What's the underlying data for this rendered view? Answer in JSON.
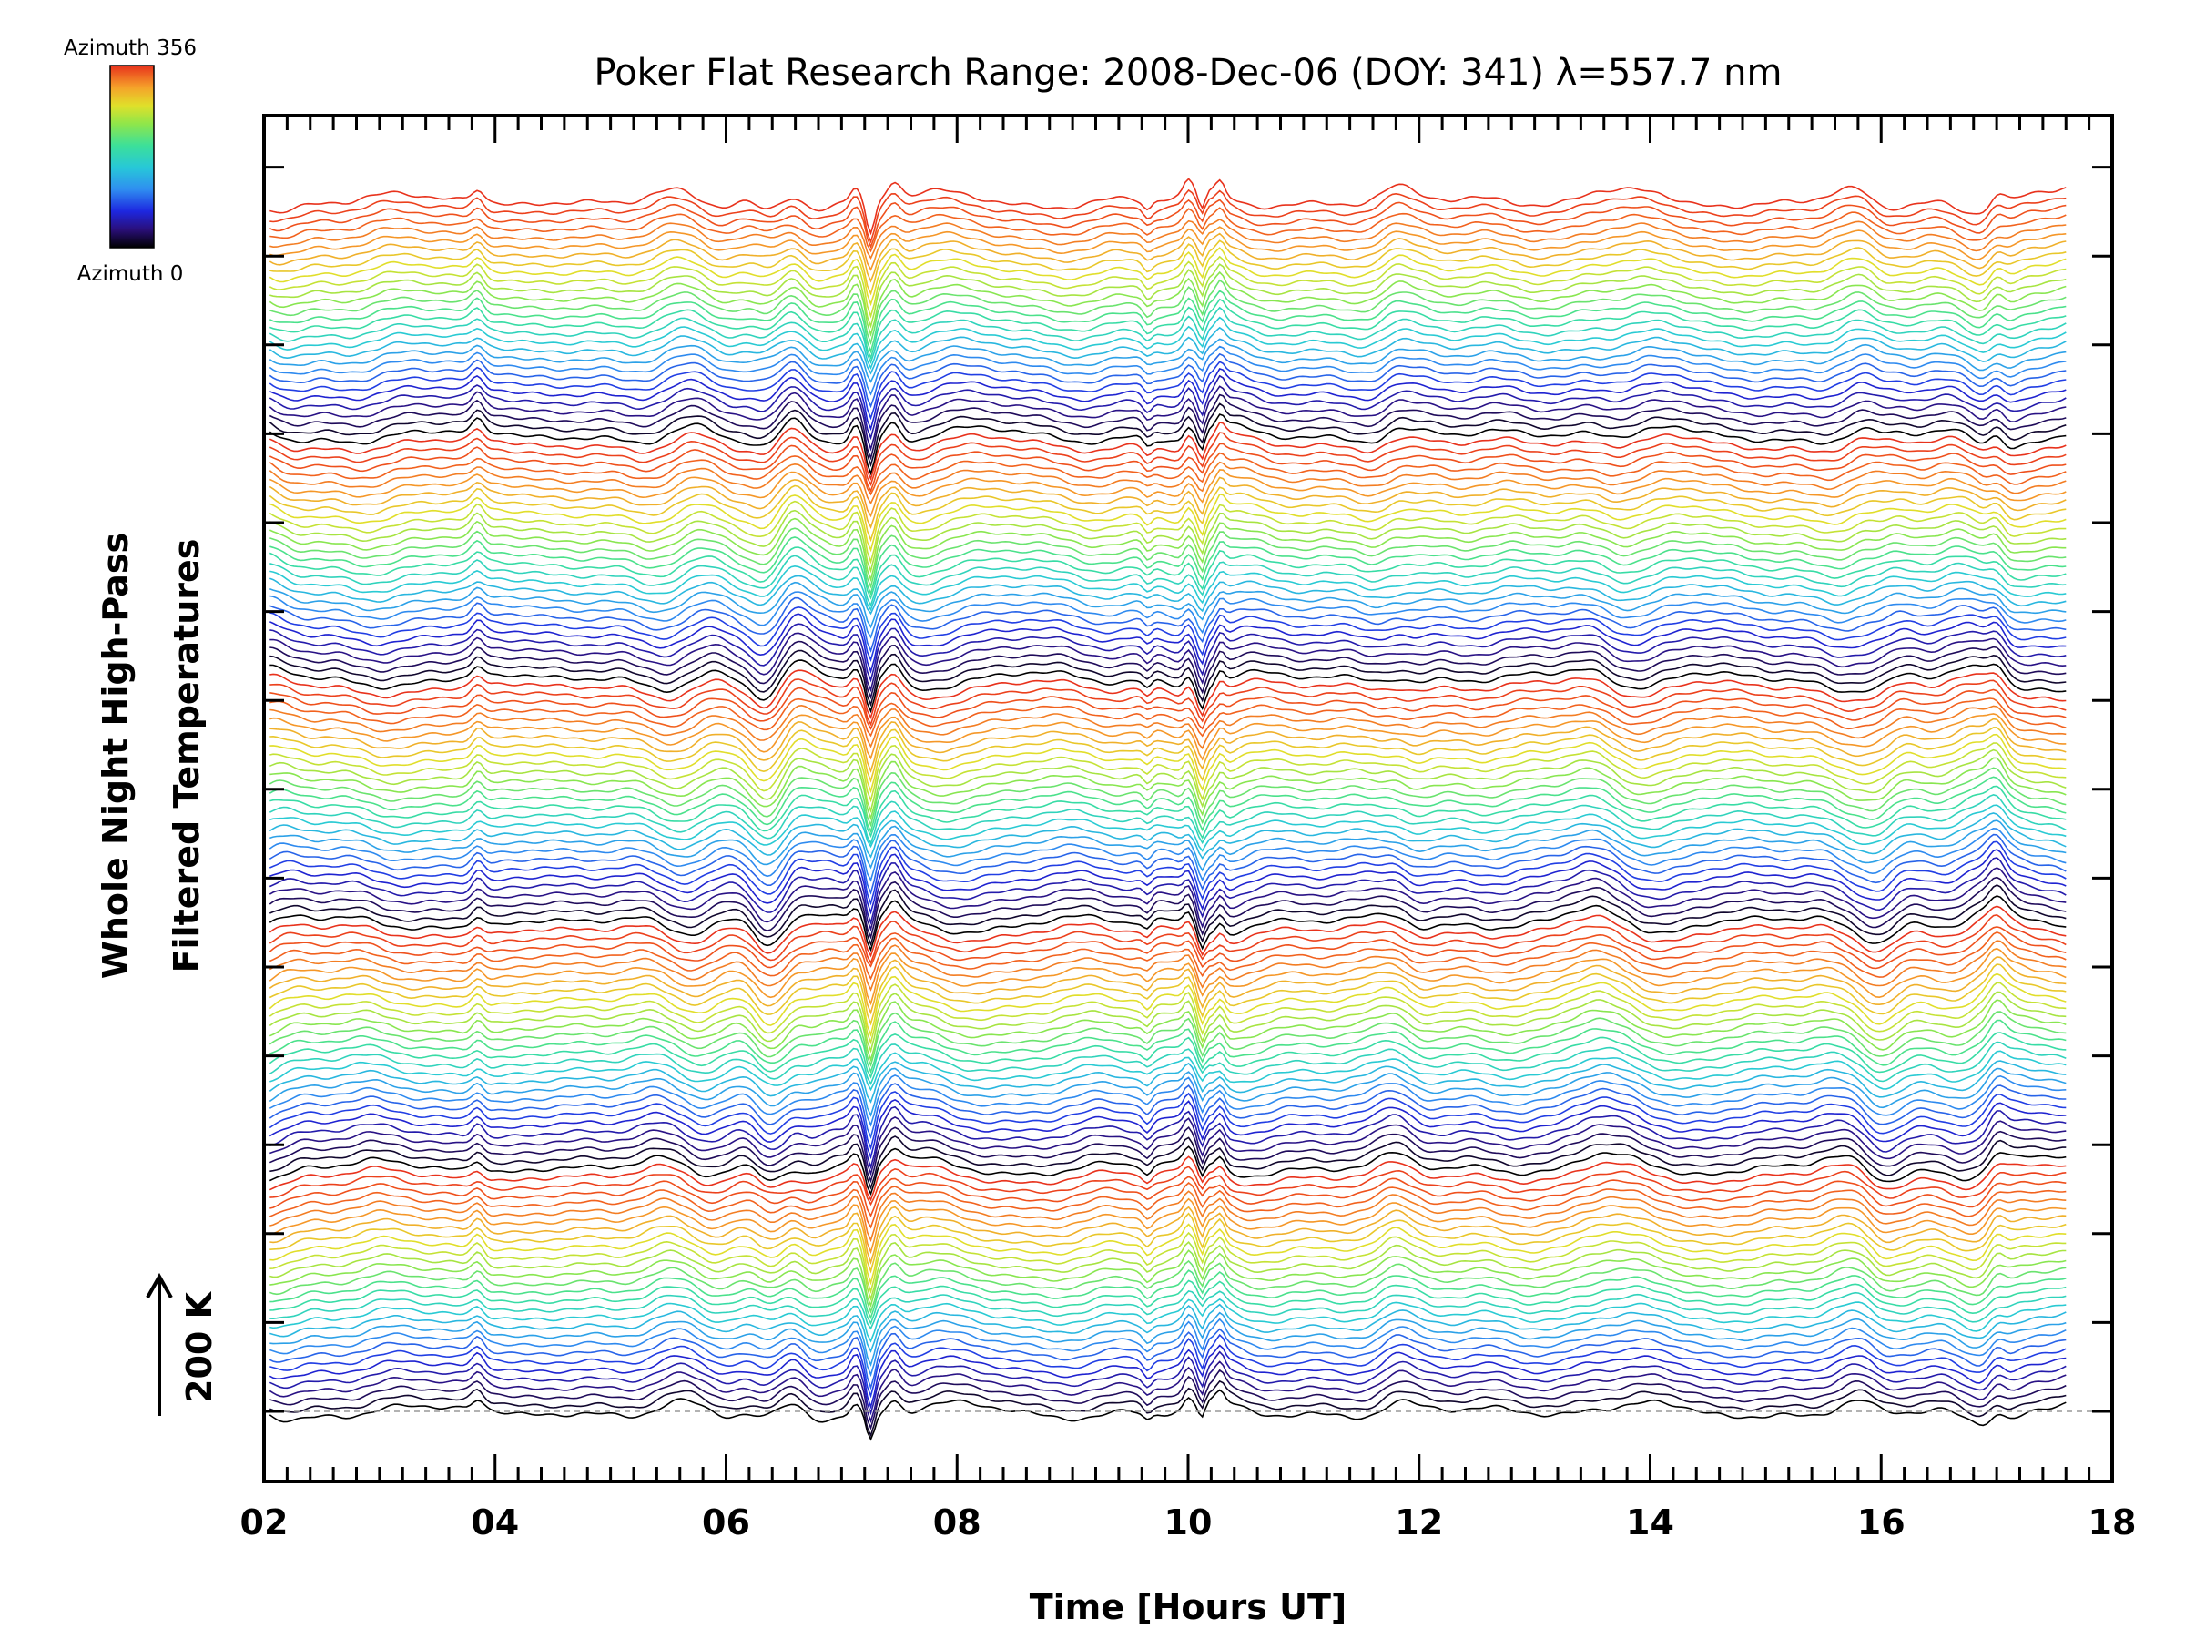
{
  "chart_data": {
    "type": "line",
    "title": "Poker Flat Research Range: 2008-Dec-06 (DOY: 341) λ=557.7 nm",
    "xlabel": "Time [Hours UT]",
    "ylabel_line1": "Whole Night High-Pass",
    "ylabel_line2": "Filtered Temperatures",
    "xlim": [
      2,
      18
    ],
    "xticks": [
      "02",
      "04",
      "06",
      "08",
      "10",
      "12",
      "14",
      "16",
      "18"
    ],
    "x_start": 2.05,
    "x_end": 17.6,
    "scale_bar_label": "200 K",
    "colorbar": {
      "top_label": "Azimuth 356",
      "bottom_label": "Azimuth 0",
      "colors": [
        "#000000",
        "#2a0f7a",
        "#1d27e0",
        "#2f8ef0",
        "#27c8d8",
        "#3ce09a",
        "#8fe64a",
        "#e0e02a",
        "#f5a22a",
        "#f25a1c",
        "#e8321c"
      ]
    },
    "series_count": 140,
    "series_azimuth_cycle": 28,
    "series_note": "Stacked high-pass filtered temperature traces colored by azimuth (0 to 356)",
    "features": [
      {
        "x": 3.85,
        "amplitude": 14,
        "width": 0.07
      },
      {
        "x": 6.35,
        "amplitude": -18,
        "width": 0.15
      },
      {
        "x": 6.6,
        "amplitude": 12,
        "width": 0.12
      },
      {
        "x": 7.12,
        "amplitude": 16,
        "width": 0.06
      },
      {
        "x": 7.25,
        "amplitude": -40,
        "width": 0.05
      },
      {
        "x": 7.45,
        "amplitude": 22,
        "width": 0.09
      },
      {
        "x": 9.65,
        "amplitude": -10,
        "width": 0.05
      },
      {
        "x": 10.0,
        "amplitude": 14,
        "width": 0.05
      },
      {
        "x": 10.12,
        "amplitude": -22,
        "width": 0.04
      },
      {
        "x": 10.28,
        "amplitude": 14,
        "width": 0.05
      },
      {
        "x": 11.8,
        "amplitude": 10,
        "width": 0.15
      },
      {
        "x": 13.5,
        "amplitude": 12,
        "width": 0.25
      },
      {
        "x": 16.0,
        "amplitude": -10,
        "width": 0.15
      },
      {
        "x": 17.0,
        "amplitude": 16,
        "width": 0.09
      }
    ]
  }
}
